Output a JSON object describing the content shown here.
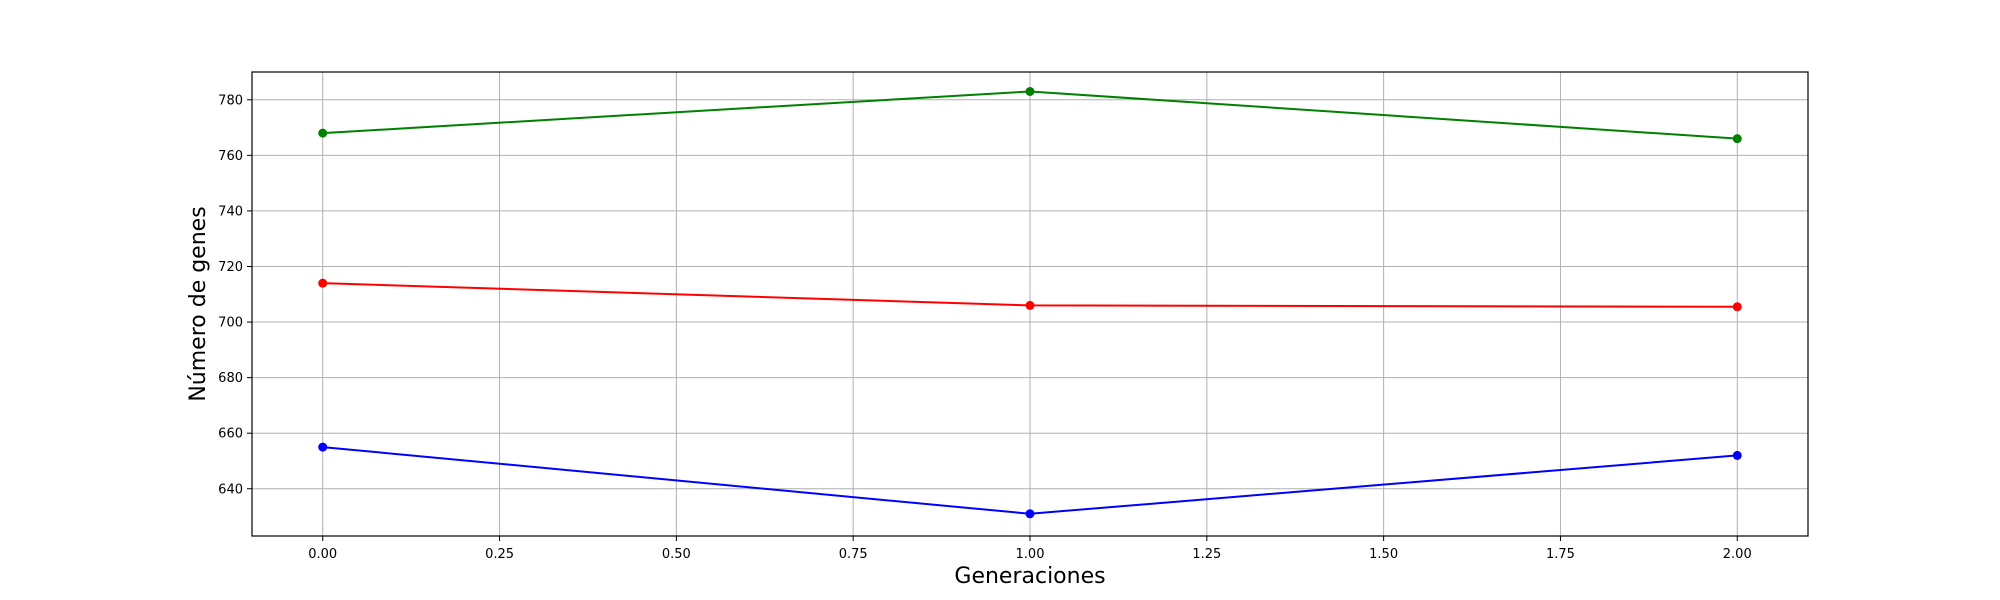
{
  "chart_data": {
    "type": "line",
    "title": "",
    "xlabel": "Generaciones",
    "ylabel": "Número de genes",
    "xlim": [
      -0.1,
      2.1
    ],
    "ylim": [
      623,
      790
    ],
    "x_ticks": [
      0.0,
      0.25,
      0.5,
      0.75,
      1.0,
      1.25,
      1.5,
      1.75,
      2.0
    ],
    "x_tick_labels": [
      "0.00",
      "0.25",
      "0.50",
      "0.75",
      "1.00",
      "1.25",
      "1.50",
      "1.75",
      "2.00"
    ],
    "y_ticks": [
      640,
      660,
      680,
      700,
      720,
      740,
      760,
      780
    ],
    "y_tick_labels": [
      "640",
      "660",
      "680",
      "700",
      "720",
      "740",
      "760",
      "780"
    ],
    "grid": true,
    "legend": "none",
    "series": [
      {
        "color": "#008000",
        "x": [
          0,
          1,
          2
        ],
        "y": [
          768,
          783,
          766
        ]
      },
      {
        "color": "#ff0000",
        "x": [
          0,
          1,
          2
        ],
        "y": [
          714,
          706,
          705.5
        ]
      },
      {
        "color": "#0000ff",
        "x": [
          0,
          1,
          2
        ],
        "y": [
          655,
          631,
          652
        ]
      }
    ]
  }
}
